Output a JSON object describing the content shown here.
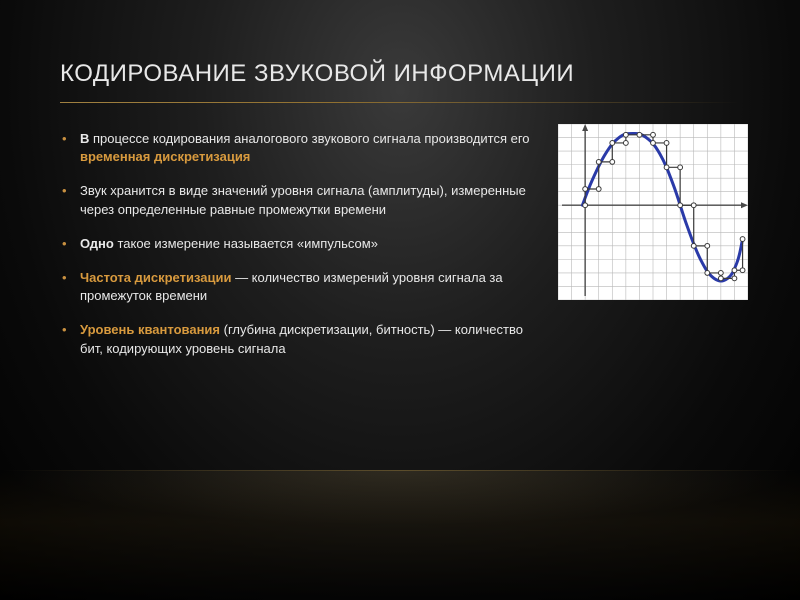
{
  "title": "КОДИРОВАНИЕ ЗВУКОВОЙ ИНФОРМАЦИИ",
  "bullets": {
    "b1a": "В",
    "b1b": " процессе кодирования аналогового звукового сигнала производится его ",
    "b1c": "временная дискретизация",
    "b2": "Звук хранится в виде значений уровня сигнала (амплитуды), измеренные через определенные равные промежутки времени",
    "b3a": "Одно",
    "b3b": " такое измерение называется «импульсом»",
    "b4a": "Частота дискретизации",
    "b4b": " — количество измерений уровня сигнала за промежуток времени",
    "b5a": "Уровень квантования",
    "b5b": " (глубина дискретизации, битность) — количество бит, кодирующих уровень сигнала"
  },
  "chart": {
    "type": "line-with-samples",
    "width": 190,
    "height": 176,
    "background": "#ffffff",
    "grid_color": "#b8b8b8",
    "grid_cols": 14,
    "grid_rows": 13,
    "axis_color": "#4a4a4a",
    "axis_x_row": 6,
    "axis_y_col": 2,
    "curve_color": "#2a3aa8",
    "curve_width": 3,
    "curve_points": [
      [
        1.8,
        6.0
      ],
      [
        2.5,
        4.2
      ],
      [
        3.5,
        2.2
      ],
      [
        4.5,
        1.0
      ],
      [
        5.5,
        0.7
      ],
      [
        6.5,
        1.0
      ],
      [
        7.5,
        2.2
      ],
      [
        8.5,
        4.5
      ],
      [
        9.5,
        7.5
      ],
      [
        10.5,
        10.0
      ],
      [
        11.5,
        11.4
      ],
      [
        12.5,
        11.4
      ],
      [
        13.2,
        10.2
      ],
      [
        13.6,
        8.5
      ]
    ],
    "marker_color": "#3a3a3a",
    "marker_fill": "#ffffff",
    "marker_radius": 2.4,
    "sample_points": [
      [
        2,
        6.0
      ],
      [
        2,
        4.8
      ],
      [
        3,
        4.8
      ],
      [
        3,
        2.8
      ],
      [
        4,
        2.8
      ],
      [
        4,
        1.4
      ],
      [
        5,
        1.4
      ],
      [
        5,
        0.8
      ],
      [
        6,
        0.8
      ],
      [
        7,
        0.8
      ],
      [
        7,
        1.4
      ],
      [
        8,
        1.4
      ],
      [
        8,
        3.2
      ],
      [
        9,
        3.2
      ],
      [
        9,
        6.0
      ],
      [
        10,
        6.0
      ],
      [
        10,
        9.0
      ],
      [
        11,
        9.0
      ],
      [
        11,
        11.0
      ],
      [
        12,
        11.0
      ],
      [
        12,
        11.4
      ],
      [
        13,
        11.4
      ],
      [
        13,
        10.8
      ],
      [
        13.6,
        10.8
      ],
      [
        13.6,
        8.5
      ]
    ],
    "step_color": "#3a3a3a",
    "step_width": 1.2
  }
}
